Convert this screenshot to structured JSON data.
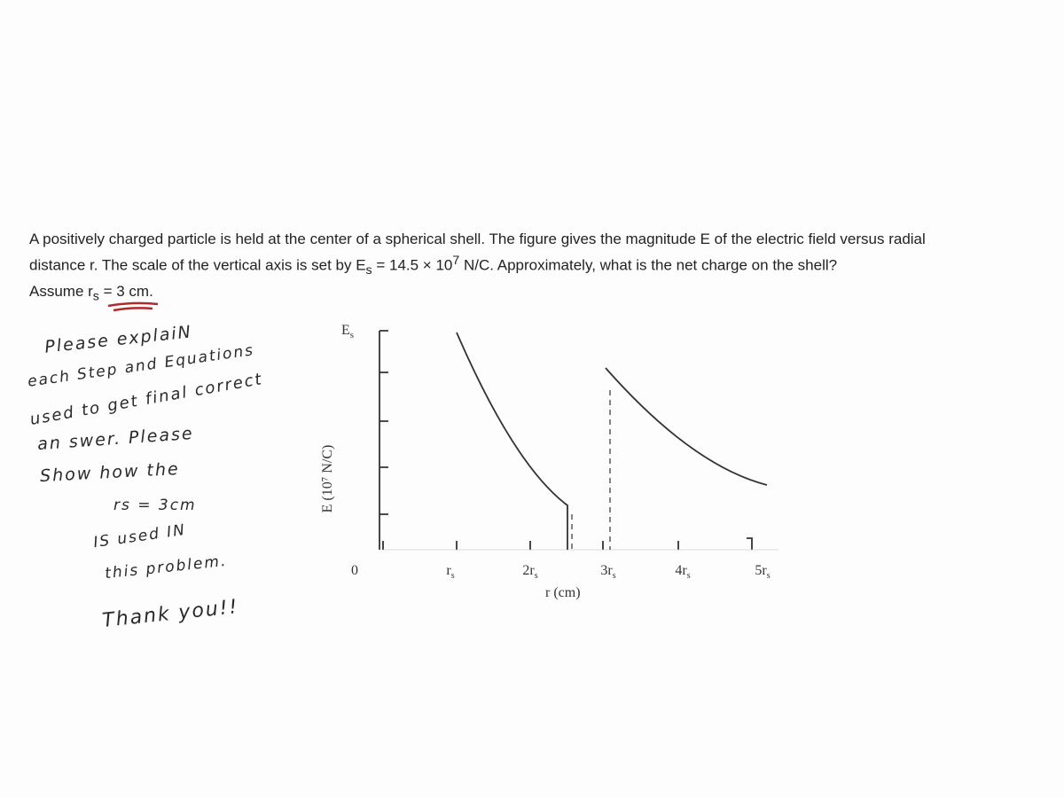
{
  "problem": {
    "line1": "A positively charged particle is held at the center of a spherical shell. The figure gives the magnitude E of the electric field versus radial",
    "line2": {
      "a": "distance r. The scale of the vertical axis is set by E",
      "sub": "s",
      "b": " = 14.5 × 10",
      "sup": "7",
      "c": " N/C. Approximately, what is the net charge on the shell?"
    },
    "line3": {
      "a": "Assume r",
      "sub": "s",
      "b": " = 3 cm."
    }
  },
  "notes": [
    "Please explaiN",
    "each Step and Equations",
    "used to get final correct",
    "an swer. Please",
    "Show how the",
    "rs = 3cm",
    "IS used IN",
    "this problem.",
    "Thank you!!"
  ],
  "figure": {
    "y_label": "E (10⁷ N/C)",
    "y_top": {
      "main": "E",
      "sub": "s"
    },
    "x_label": "r (cm)",
    "x_ticks": [
      {
        "main": "0",
        "sub": ""
      },
      {
        "main": "r",
        "sub": "s"
      },
      {
        "main": "2r",
        "sub": "s"
      },
      {
        "main": "3r",
        "sub": "s"
      },
      {
        "main": "4r",
        "sub": "s"
      },
      {
        "main": "5r",
        "sub": "s"
      }
    ]
  }
}
